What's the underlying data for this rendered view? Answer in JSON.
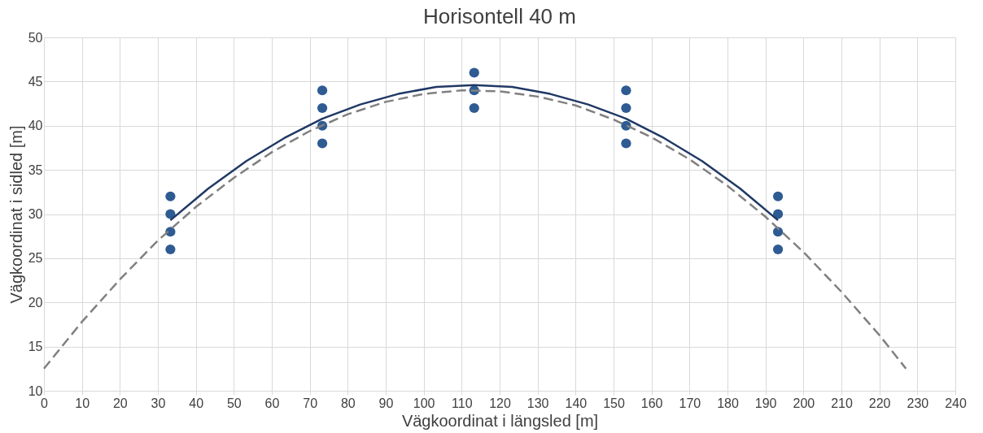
{
  "chart_data": {
    "type": "scatter",
    "title": "Horisontell 40 m",
    "xlabel": "Vägkoordinat i längsled [m]",
    "ylabel": "Vägkoordinat i sidled [m]",
    "xlim": [
      0,
      240
    ],
    "xticks": [
      0,
      10,
      20,
      30,
      40,
      50,
      60,
      70,
      80,
      90,
      100,
      110,
      120,
      130,
      140,
      150,
      160,
      170,
      180,
      190,
      200,
      210,
      220,
      230,
      240
    ],
    "ylim": [
      10,
      50
    ],
    "yticks": [
      10,
      15,
      20,
      25,
      30,
      35,
      40,
      45,
      50
    ],
    "grid": true,
    "legend": false,
    "series": [
      {
        "marker": "circle",
        "color": "#2f5b93",
        "x": [
          33.3,
          33.3,
          33.3,
          33.3,
          73.3,
          73.3,
          73.3,
          73.3,
          113.3,
          113.3,
          113.3,
          153.3,
          153.3,
          153.3,
          153.3,
          193.3,
          193.3,
          193.3,
          193.3
        ],
        "values": [
          26,
          28,
          30,
          32,
          38,
          40,
          42,
          44,
          42,
          44,
          46,
          38,
          40,
          42,
          44,
          26,
          28,
          30,
          32
        ]
      },
      {
        "type": "line",
        "marker": "none",
        "line_style": "solid",
        "color": "#203864",
        "x": [
          33.3,
          43.3,
          53.3,
          63.3,
          73.3,
          83.3,
          93.3,
          103.3,
          113.3,
          123.3,
          133.3,
          143.3,
          153.3,
          163.3,
          173.3,
          183.3,
          193.3
        ],
        "values": [
          29.3,
          32.9,
          36.0,
          38.6,
          40.8,
          42.4,
          43.6,
          44.4,
          44.6,
          44.4,
          43.6,
          42.4,
          40.8,
          38.6,
          36.0,
          32.9,
          29.3
        ]
      },
      {
        "type": "line",
        "marker": "none",
        "line_style": "dashed",
        "color": "#808080",
        "x": [
          0,
          10,
          20,
          30,
          40,
          50,
          60,
          70,
          80,
          90,
          100,
          110,
          120,
          130,
          140,
          150,
          160,
          170,
          180,
          190,
          200,
          210,
          220,
          227
        ],
        "values": [
          12.5,
          17.8,
          22.6,
          27.0,
          30.8,
          34.1,
          37.0,
          39.4,
          41.3,
          42.7,
          43.6,
          44.0,
          43.9,
          43.3,
          42.3,
          40.7,
          38.7,
          36.2,
          33.2,
          29.7,
          25.7,
          21.2,
          16.3,
          12.5
        ]
      }
    ]
  }
}
